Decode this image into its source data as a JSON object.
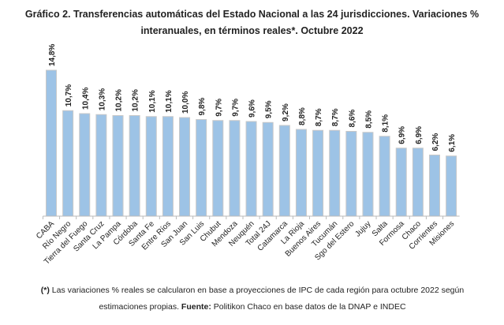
{
  "chart_data": {
    "type": "bar",
    "title_line1": "Gráfico 2. Transferencias automáticas del Estado Nacional a las 24 jurisdicciones. Variaciones %",
    "title_line2": "interanuales, en términos reales*. Octubre 2022",
    "categories": [
      "CABA",
      "Río Negro",
      "Tierra del Fuego",
      "Santa Cruz",
      "La Pampa",
      "Córdoba",
      "Santa Fe",
      "Entre Ríos",
      "San Juan",
      "San Luis",
      "Chubut",
      "Mendoza",
      "Neuquén",
      "Total 24J",
      "Catamarca",
      "La Rioja",
      "Buenos Aires",
      "Tucumán",
      "Sgo del Estero",
      "Jujuy",
      "Salta",
      "Formosa",
      "Chaco",
      "Corrientes",
      "Misiones"
    ],
    "values": [
      14.8,
      10.7,
      10.4,
      10.3,
      10.2,
      10.2,
      10.1,
      10.1,
      10.0,
      9.8,
      9.7,
      9.7,
      9.6,
      9.5,
      9.2,
      8.8,
      8.7,
      8.7,
      8.6,
      8.5,
      8.1,
      6.9,
      6.9,
      6.2,
      6.1
    ],
    "labels": [
      "14,8%",
      "10,7%",
      "10,4%",
      "10,3%",
      "10,2%",
      "10,2%",
      "10,1%",
      "10,1%",
      "10,0%",
      "9,8%",
      "9,7%",
      "9,7%",
      "9,6%",
      "9,5%",
      "9,2%",
      "8,8%",
      "8,7%",
      "8,7%",
      "8,6%",
      "8,5%",
      "8,1%",
      "6,9%",
      "6,9%",
      "6,2%",
      "6,1%"
    ],
    "ylim": [
      0,
      14.8
    ],
    "grid": false,
    "bar_color": "#9dc3e6",
    "bar_border": "#c8c8c8"
  },
  "footnote": {
    "marker": "(*)",
    "text1": " Las variaciones % reales se calcularon en base a proyecciones de IPC de cada región para octubre 2022 según",
    "text2": "estimaciones propias. ",
    "source_label": "Fuente:",
    "source_text": " Politikon Chaco en base datos de la DNAP e INDEC"
  }
}
